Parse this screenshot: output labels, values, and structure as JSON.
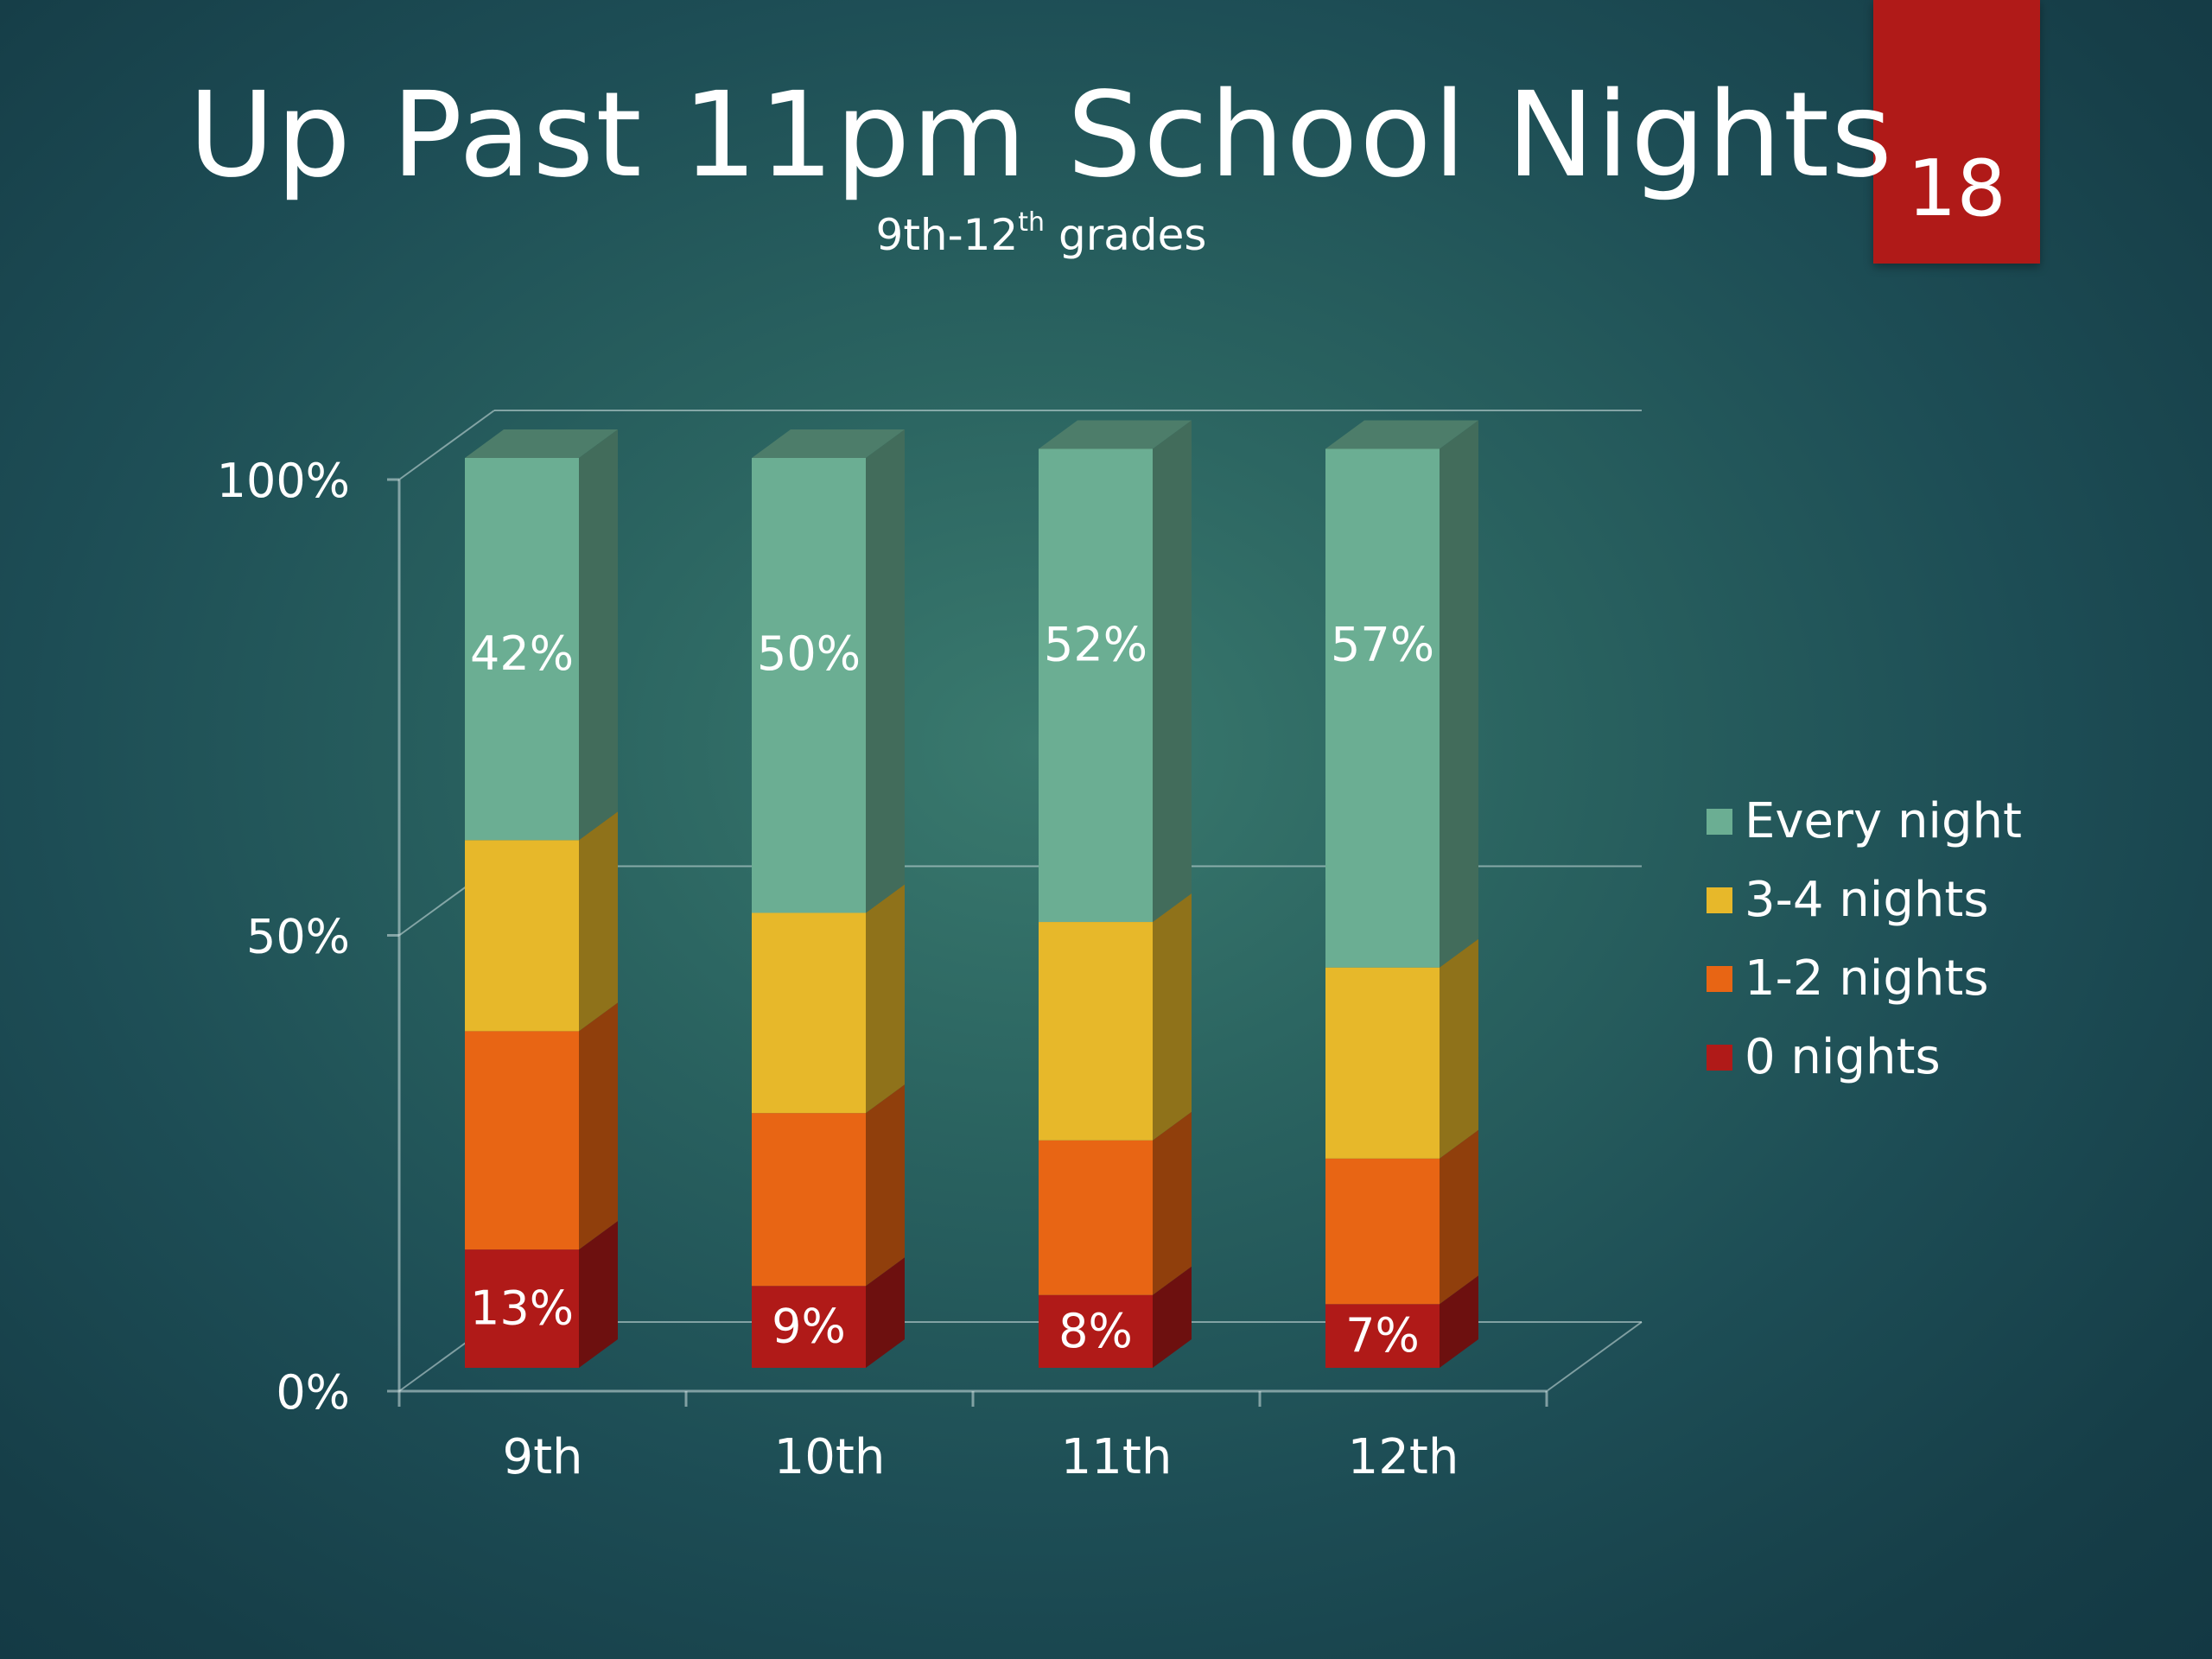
{
  "slide": {
    "number": "18"
  },
  "chart_data": {
    "type": "bar",
    "stacked": true,
    "percent_stacked": true,
    "three_d": true,
    "title": "Up Past 11pm School Nights",
    "subtitle_prefix": "9th-12",
    "subtitle_sup": "th",
    "subtitle_suffix": " grades",
    "categories": [
      "9th",
      "10th",
      "11th",
      "12th"
    ],
    "y_ticks": [
      "0%",
      "50%",
      "100%"
    ],
    "ylim": [
      0,
      100
    ],
    "grid": true,
    "legend_position": "right",
    "series": [
      {
        "name": "0 nights",
        "values": [
          13,
          9,
          8,
          7
        ],
        "labels": [
          "13%",
          "9%",
          "8%",
          "7%"
        ],
        "color": "#b01a18"
      },
      {
        "name": "1-2 nights",
        "values": [
          24,
          19,
          17,
          16
        ],
        "labels": [
          "",
          "",
          "",
          ""
        ],
        "color": "#e86514"
      },
      {
        "name": "3-4 nights",
        "values": [
          21,
          22,
          24,
          21
        ],
        "labels": [
          "",
          "",
          "",
          ""
        ],
        "color": "#e7b82a"
      },
      {
        "name": "Every night",
        "values": [
          42,
          50,
          52,
          57
        ],
        "labels": [
          "42%",
          "50%",
          "52%",
          "57%"
        ],
        "color": "#6bae93"
      }
    ],
    "legend_order": [
      "Every night",
      "3-4 nights",
      "1-2 nights",
      "0 nights"
    ]
  }
}
